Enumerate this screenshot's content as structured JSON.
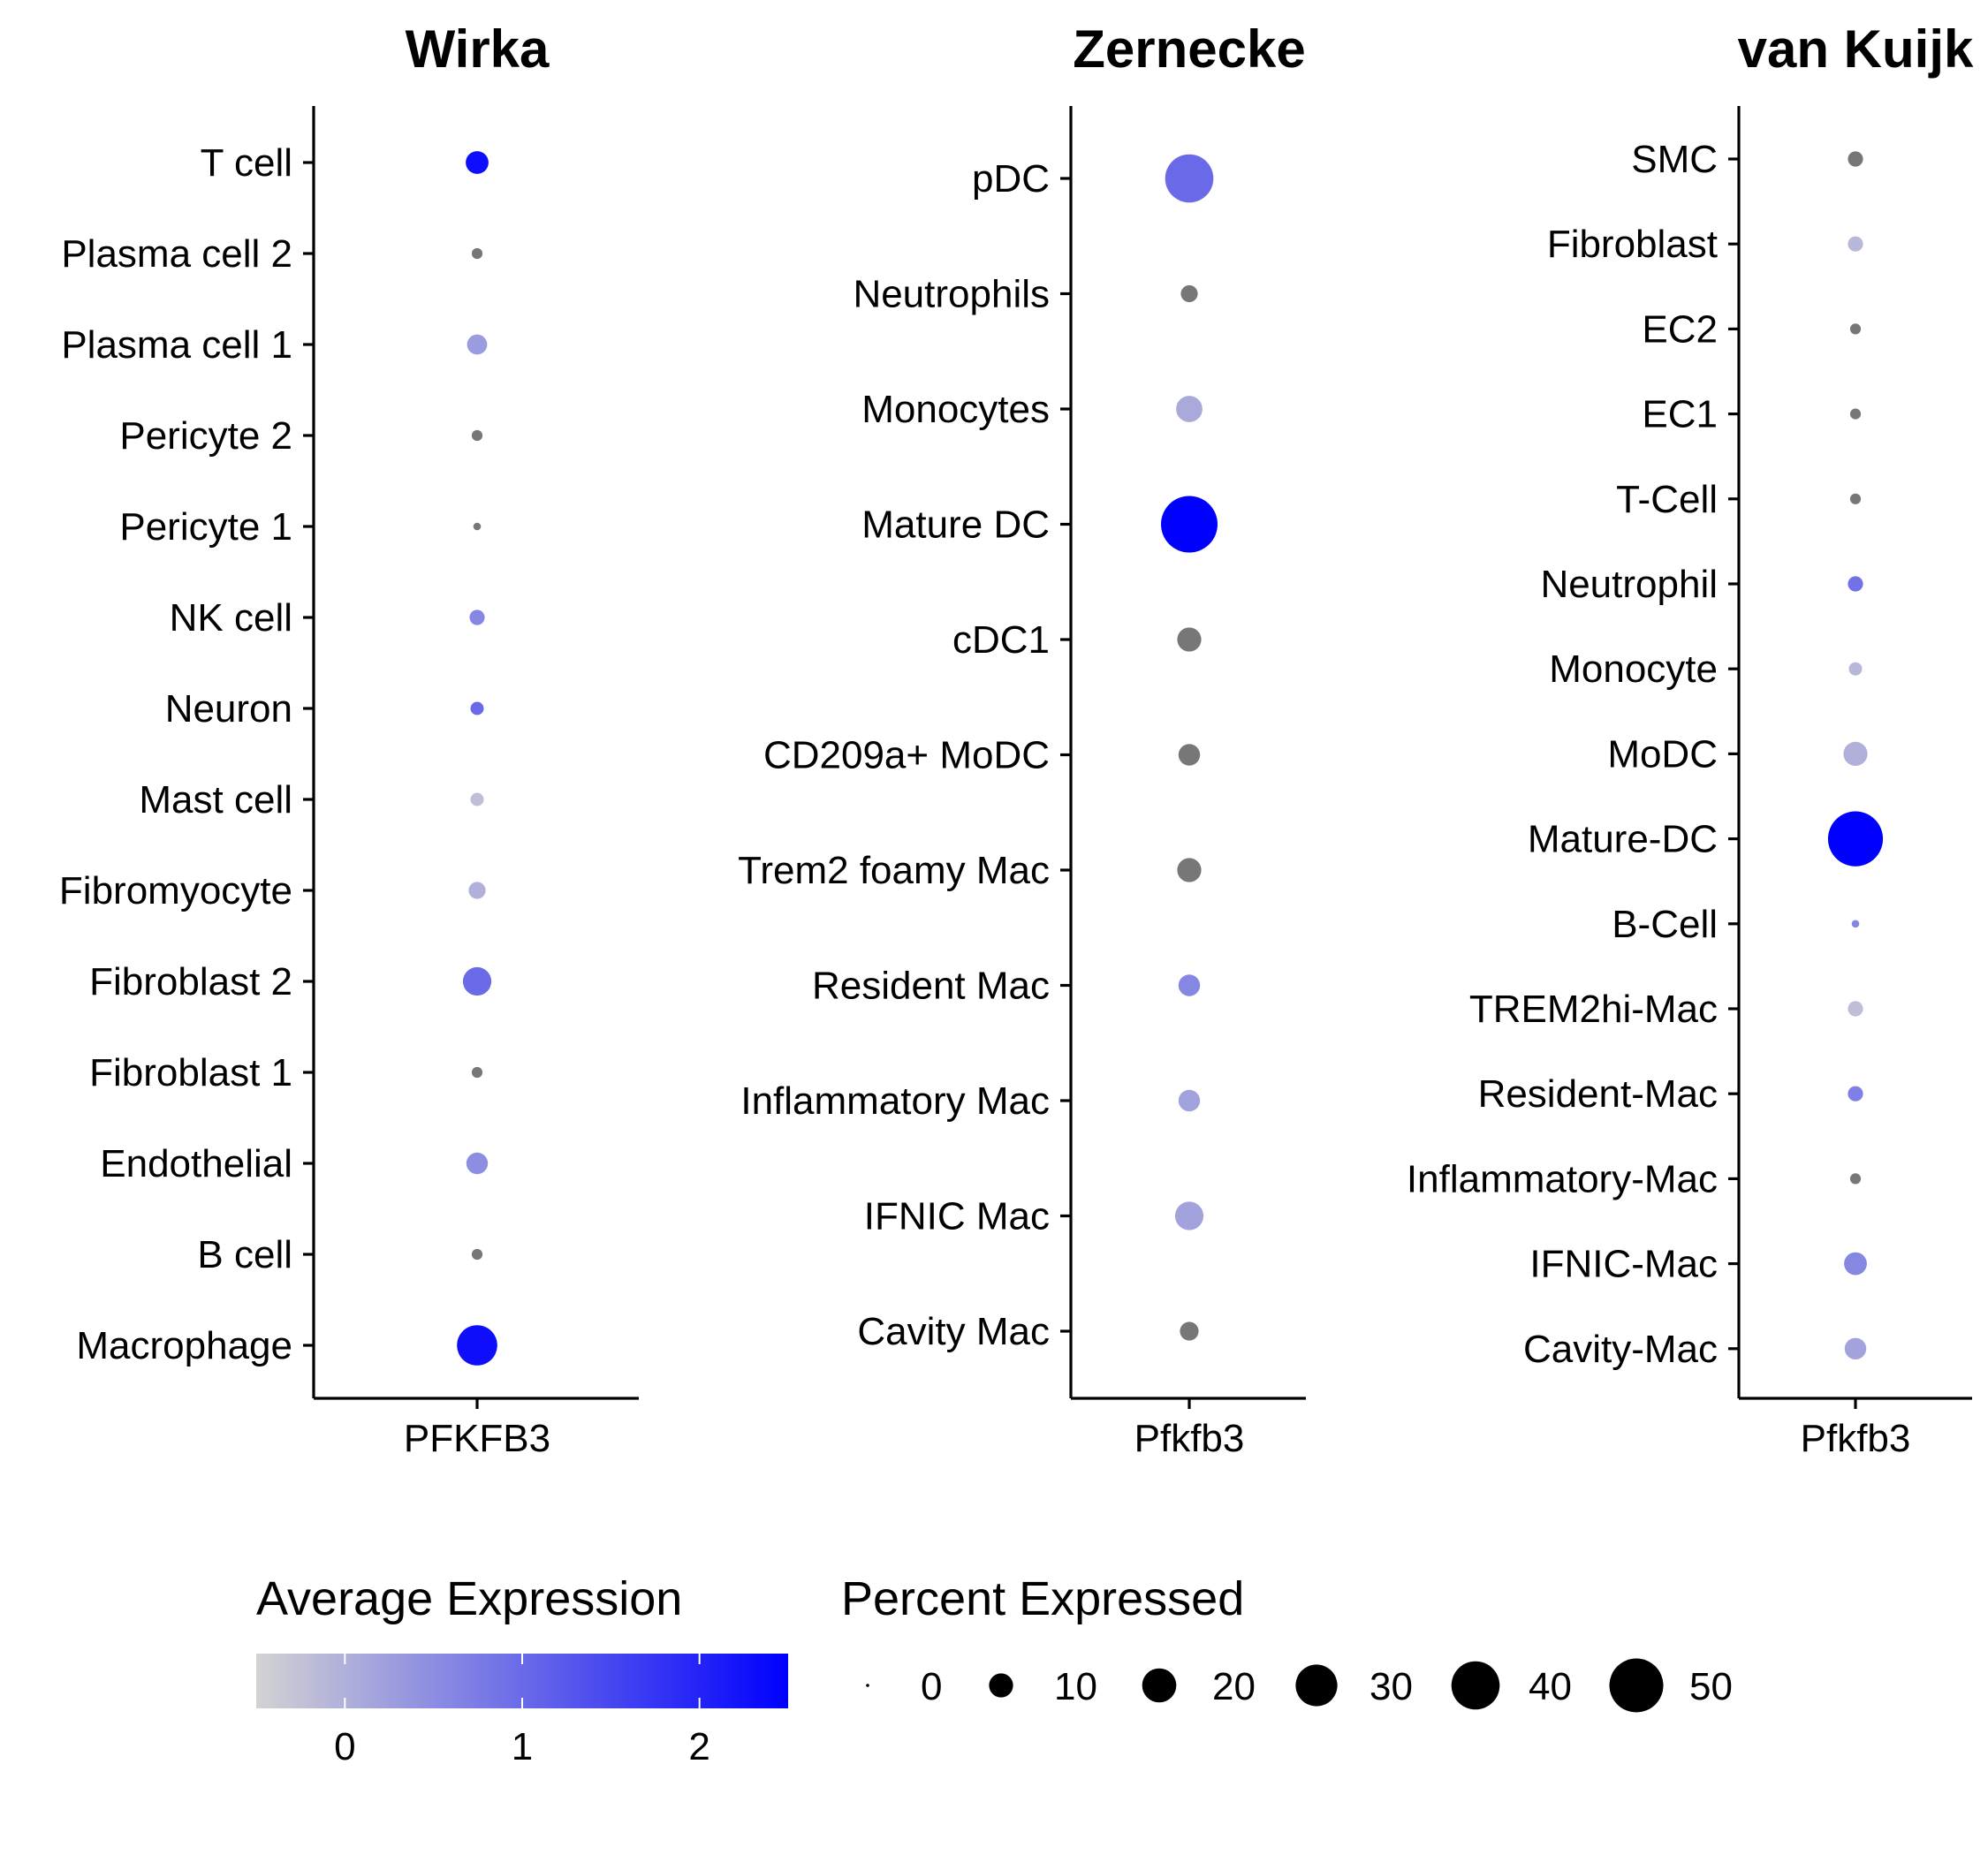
{
  "chart_data": [
    {
      "type": "dotplot",
      "title": "Wirka",
      "gene": "PFKFB3",
      "categories": [
        "T cell",
        "Plasma cell 2",
        "Plasma cell 1",
        "Pericyte 2",
        "Pericyte 1",
        "NK cell",
        "Neuron",
        "Mast cell",
        "Fibromyocyte",
        "Fibroblast 2",
        "Fibroblast 1",
        "Endothelial",
        "B cell",
        "Macrophage"
      ],
      "avg_expression": [
        2.3,
        -0.3,
        0.3,
        -0.3,
        -0.3,
        0.6,
        1.0,
        -0.2,
        0.0,
        1.0,
        -0.3,
        0.5,
        -0.3,
        2.3
      ],
      "pct_expressed": [
        9,
        2,
        7,
        2,
        1,
        4,
        3,
        3,
        5,
        14,
        2,
        8,
        2,
        28
      ]
    },
    {
      "type": "dotplot",
      "title": "Zernecke",
      "gene": "Pfkfb3",
      "categories": [
        "pDC",
        "Neutrophils",
        "Monocytes",
        "Mature DC",
        "cDC1",
        "CD209a+ MoDC",
        "Trem2 foamy Mac",
        "Resident Mac",
        "Inflammatory Mac",
        "IFNIC Mac",
        "Cavity Mac"
      ],
      "avg_expression": [
        1.0,
        -0.4,
        0.1,
        2.6,
        -0.4,
        -0.5,
        -0.6,
        0.6,
        0.2,
        0.2,
        -0.5
      ],
      "pct_expressed": [
        40,
        5,
        12,
        55,
        10,
        8,
        10,
        8,
        8,
        14,
        6
      ]
    },
    {
      "type": "dotplot",
      "title": "van Kuijk",
      "gene": "Pfkfb3",
      "categories": [
        "SMC",
        "Fibroblast",
        "EC2",
        "EC1",
        "T-Cell",
        "Neutrophil",
        "Monocyte",
        "MoDC",
        "Mature-DC",
        "B-Cell",
        "TREM2hi-Mac",
        "Resident-Mac",
        "Inflammatory-Mac",
        "IFNIC-Mac",
        "Cavity-Mac"
      ],
      "avg_expression": [
        -0.4,
        -0.1,
        -0.3,
        -0.4,
        -0.4,
        0.9,
        -0.1,
        0.0,
        2.6,
        0.6,
        -0.2,
        0.7,
        -0.4,
        0.6,
        0.2
      ],
      "pct_expressed": [
        4,
        4,
        2,
        2,
        2,
        4,
        3,
        10,
        52,
        1,
        4,
        4,
        2,
        9,
        8
      ]
    }
  ],
  "legend": {
    "color": {
      "title": "Average Expression",
      "ticks": [
        0,
        1,
        2
      ],
      "range": [
        -0.5,
        2.5
      ],
      "low_color": "#d3d3d3",
      "high_color": "#0000ff"
    },
    "size": {
      "title": "Percent Expressed",
      "ticks": [
        0,
        10,
        20,
        30,
        40,
        50
      ]
    }
  }
}
